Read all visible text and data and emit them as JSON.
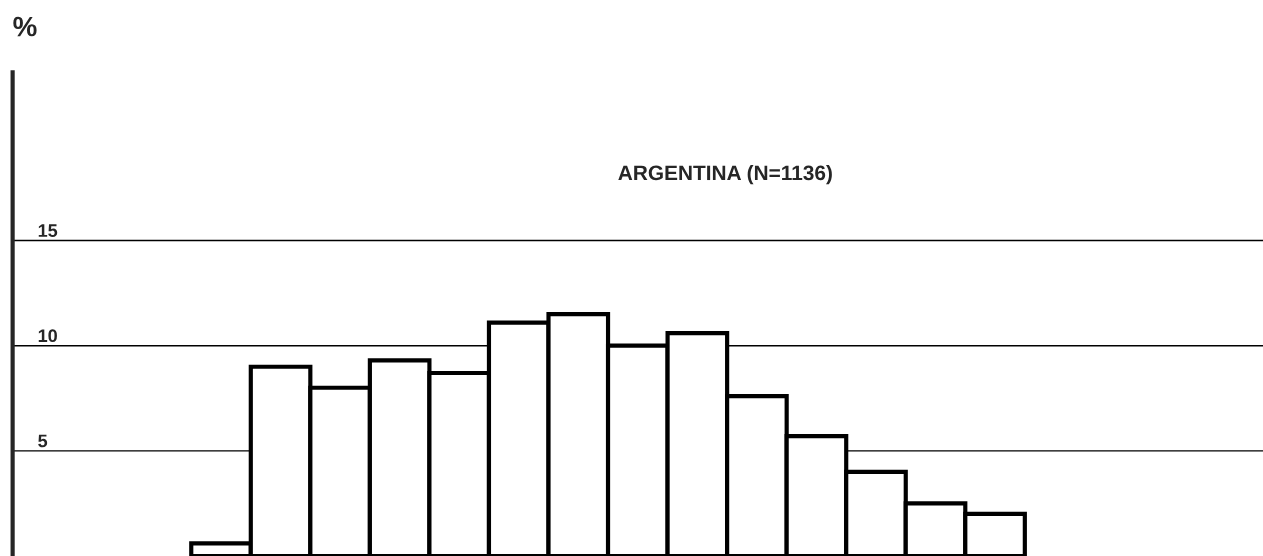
{
  "chart_data": {
    "type": "bar",
    "title": "ARGENTINA (N=1136)",
    "ylabel": "%",
    "categories": [
      null,
      null,
      null,
      null,
      null,
      null,
      null,
      null,
      null,
      null,
      null,
      null,
      null,
      null,
      null,
      null,
      null,
      null,
      null,
      null,
      null
    ],
    "values": [
      null,
      null,
      null,
      0.6,
      9.0,
      8.0,
      9.3,
      8.7,
      11.1,
      11.5,
      10.0,
      10.6,
      7.6,
      5.7,
      4.0,
      2.5,
      2.0,
      null,
      null,
      null,
      null
    ],
    "color": "#ffffff",
    "ylim": [
      0,
      23
    ],
    "yticks": [
      5,
      10,
      15
    ],
    "grid": "y",
    "tick_labels": "y"
  }
}
